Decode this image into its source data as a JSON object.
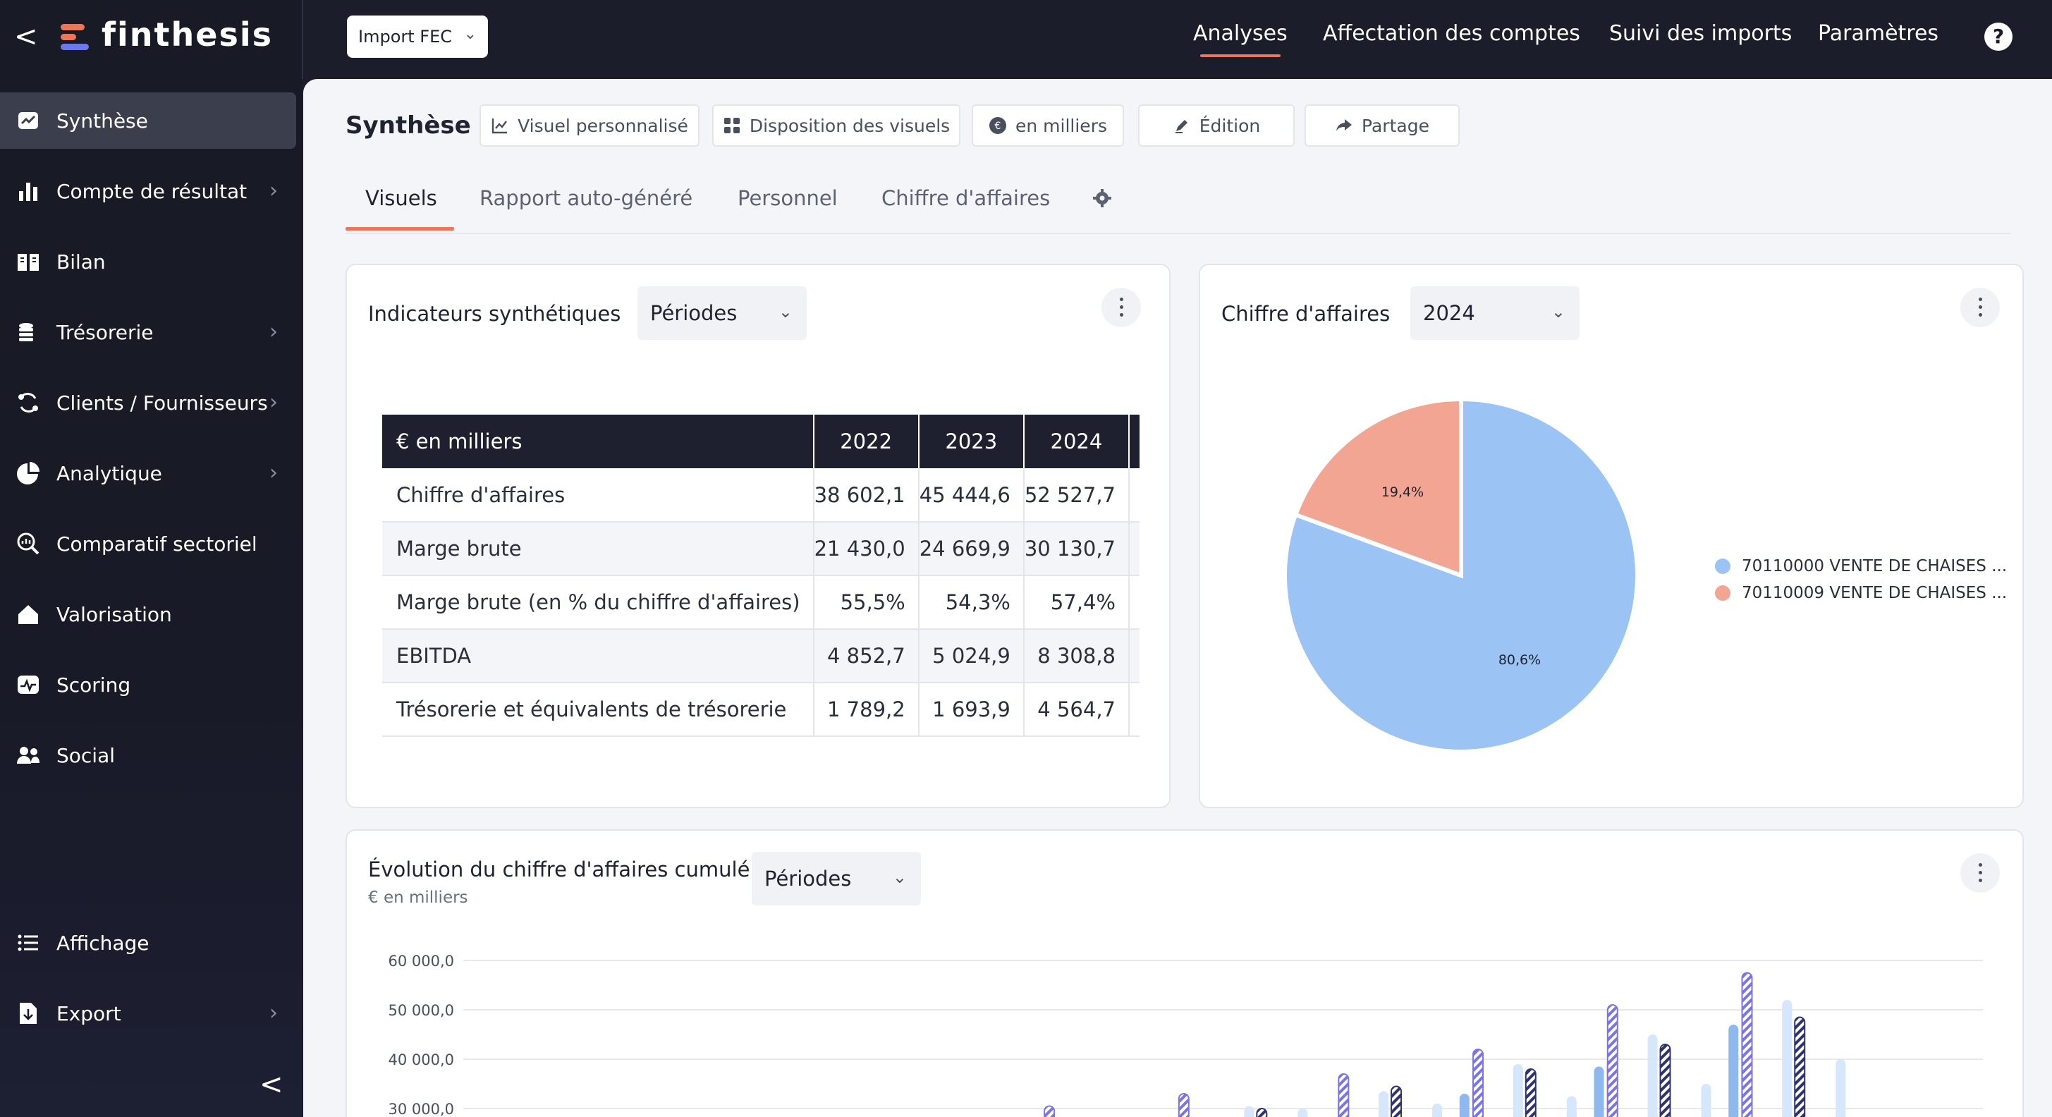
{
  "app": {
    "name": "finthesis",
    "back_label": "<",
    "collapse_label": "<"
  },
  "sidebar": {
    "items": [
      {
        "label": "Synthèse",
        "icon": "trend-icon",
        "active": true,
        "chevron": false
      },
      {
        "label": "Compte de résultat",
        "icon": "bar-chart-icon",
        "chevron": true
      },
      {
        "label": "Bilan",
        "icon": "book-icon",
        "chevron": false
      },
      {
        "label": "Trésorerie",
        "icon": "coins-icon",
        "chevron": true
      },
      {
        "label": "Clients / Fournisseurs",
        "icon": "exchange-icon",
        "chevron": true
      },
      {
        "label": "Analytique",
        "icon": "pie-icon",
        "chevron": true
      },
      {
        "label": "Comparatif sectoriel",
        "icon": "search-chart-icon",
        "chevron": false
      },
      {
        "label": "Valorisation",
        "icon": "home-icon",
        "chevron": false
      },
      {
        "label": "Scoring",
        "icon": "pulse-icon",
        "chevron": false
      },
      {
        "label": "Social",
        "icon": "users-icon",
        "chevron": false
      }
    ],
    "bottom_items": [
      {
        "label": "Affichage",
        "icon": "list-icon",
        "chevron": false
      },
      {
        "label": "Export",
        "icon": "file-export-icon",
        "chevron": true
      }
    ]
  },
  "topbar": {
    "import_label": "Import FEC",
    "tabs": [
      "Analyses",
      "Affectation des comptes",
      "Suivi des imports",
      "Paramètres"
    ],
    "active_tab": "Analyses",
    "help_label": "?"
  },
  "page": {
    "title": "Synthèse",
    "toolbar": [
      "Visuel personnalisé",
      "Disposition des visuels",
      "en milliers",
      "Édition",
      "Partage"
    ],
    "subtabs": [
      "Visuels",
      "Rapport auto-généré",
      "Personnel",
      "Chiffre d'affaires"
    ],
    "active_subtab": "Visuels"
  },
  "kpi_card": {
    "title": "Indicateurs synthétiques",
    "dropdown": "Périodes",
    "table": {
      "headers": [
        "€ en milliers",
        "2022",
        "2023",
        "2024"
      ],
      "rows": [
        [
          "Chiffre d'affaires",
          "38 602,1",
          "45 444,6",
          "52 527,7"
        ],
        [
          "Marge brute",
          "21 430,0",
          "24 669,9",
          "30 130,7"
        ],
        [
          "Marge brute (en % du chiffre d'affaires)",
          "55,5%",
          "54,3%",
          "57,4%"
        ],
        [
          "EBITDA",
          "4 852,7",
          "5 024,9",
          "8 308,8"
        ],
        [
          "Trésorerie et équivalents de trésorerie",
          "1 789,2",
          "1 693,9",
          "4 564,7"
        ]
      ]
    }
  },
  "pie_card": {
    "title": "Chiffre d'affaires",
    "dropdown": "2024",
    "legend": [
      "70110000 VENTE DE CHAISES ...",
      "70110009 VENTE DE CHAISES ..."
    ]
  },
  "evo_card": {
    "title": "Évolution du chiffre d'affaires cumulé",
    "subtitle": "€ en milliers",
    "dropdown": "Périodes"
  },
  "colors": {
    "blue": "#9bc4f5",
    "salmon": "#f2a593",
    "accent": "#e8775b",
    "navy": "#2e3370",
    "violet": "#7b74e8",
    "light_blue": "#d6e6fb"
  },
  "chart_data": [
    {
      "type": "pie",
      "title": "",
      "labels": [
        "70110000 VENTE DE CHAISES ...",
        "70110009 VENTE DE CHAISES ..."
      ],
      "values": [
        80.6,
        19.4
      ],
      "value_labels": [
        "80,6%",
        "19,4%"
      ],
      "colors": [
        "#9bc4f5",
        "#f2a593"
      ],
      "legend": "right"
    },
    {
      "type": "bar",
      "title": "",
      "ylabel": "",
      "y_ticks": [
        "60 000,0",
        "50 000,0",
        "40 000,0",
        "30 000,0"
      ],
      "ylim": [
        0,
        62000
      ],
      "grid": true,
      "series": [
        {
          "values": [
            null,
            null,
            null,
            null,
            null,
            null,
            null,
            33000,
            38500,
            47000
          ]
        },
        {
          "values": [
            null,
            null,
            null,
            null,
            null,
            null,
            31800,
            34000,
            40000,
            46000
          ]
        },
        {
          "values": [
            null,
            null,
            null,
            null,
            null,
            30500,
            33500,
            39000,
            45000,
            52000
          ]
        },
        {
          "values": [
            null,
            null,
            null,
            null,
            null,
            30000,
            34500,
            38000,
            43000,
            48500
          ]
        },
        {
          "values": [
            null,
            null,
            null,
            null,
            null,
            30000,
            31000,
            32500,
            35000,
            40000
          ]
        },
        {
          "values": [
            null,
            null,
            null,
            30500,
            33000,
            37000,
            42000,
            51000,
            57500,
            null
          ]
        }
      ]
    }
  ]
}
